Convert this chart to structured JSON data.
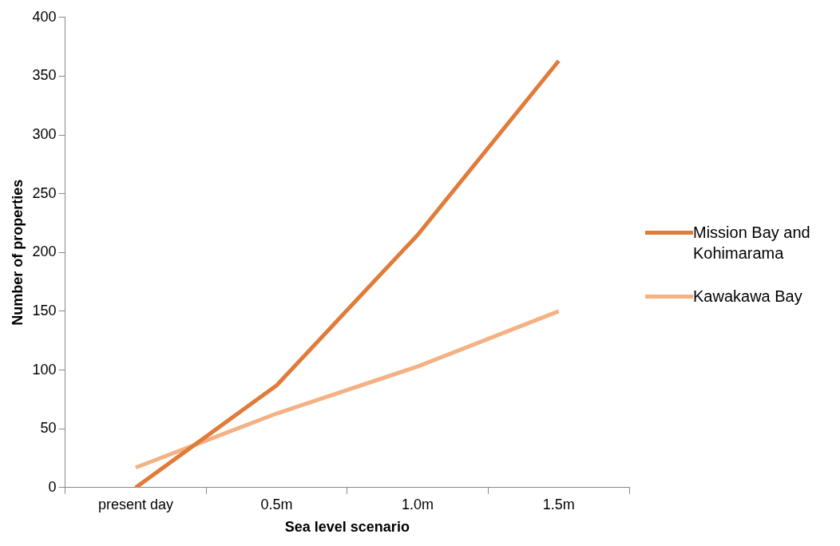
{
  "chart_data": {
    "type": "line",
    "xlabel": "Sea level scenario",
    "ylabel": "Number of properties",
    "categories": [
      "present day",
      "0.5m",
      "1.0m",
      "1.5m"
    ],
    "ylim": [
      0,
      400
    ],
    "yticks": [
      0,
      50,
      100,
      150,
      200,
      250,
      300,
      350,
      400
    ],
    "grid": false,
    "legend": "right",
    "marker": "none",
    "line_style": "solid",
    "series": [
      {
        "name": "Mission Bay and Kohimarama",
        "color": "#e07b39",
        "values": [
          0,
          87,
          215,
          363
        ]
      },
      {
        "name": "Kawakawa Bay",
        "color": "#f4b183",
        "values": [
          17,
          63,
          103,
          150
        ]
      }
    ]
  }
}
